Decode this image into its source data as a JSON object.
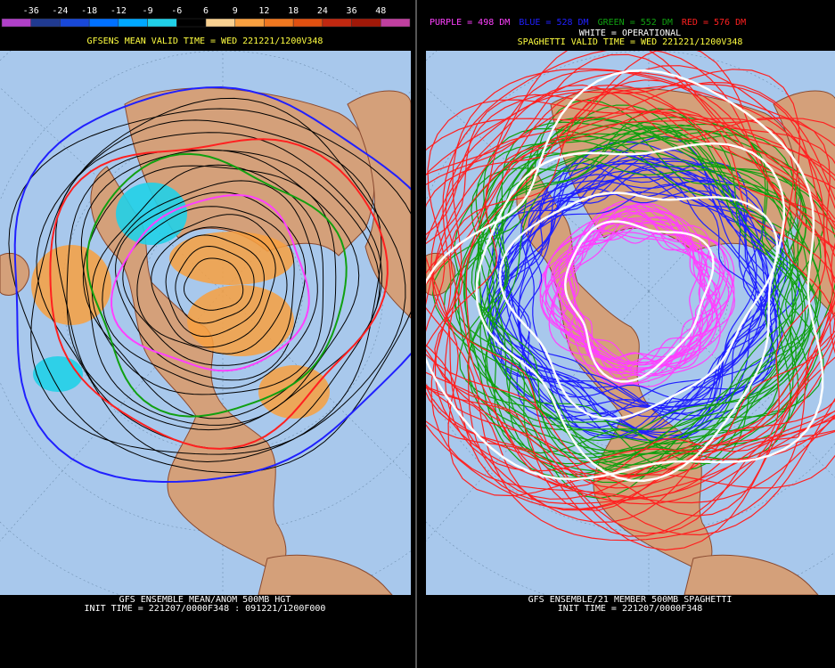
{
  "left_panel": {
    "colorbar": {
      "labels": [
        -36,
        -24,
        -18,
        -12,
        -9,
        -6,
        6,
        9,
        12,
        18,
        24,
        36,
        48
      ],
      "colors": [
        "#b040c8",
        "#203a90",
        "#1848d8",
        "#0070ff",
        "#00a8ff",
        "#20d0e8",
        "#000000",
        "#f8d090",
        "#f8a040",
        "#f07820",
        "#e05010",
        "#c02810",
        "#a01808",
        "#c040a0"
      ]
    },
    "valid_time": "GFSENS MEAN VALID TIME = WED 221221/1200V348",
    "footer": [
      "GFS ENSEMBLE MEAN/ANOM 500MB HGT",
      "INIT TIME = 221207/0000F348 : 091221/1200F000"
    ]
  },
  "right_panel": {
    "contours": [
      {
        "label": "PURPLE = 498 DM",
        "color": "#ff40ff"
      },
      {
        "label": "BLUE = 528 DM",
        "color": "#2020ff"
      },
      {
        "label": "GREEN = 552 DM",
        "color": "#10a010"
      },
      {
        "label": "RED = 576 DM",
        "color": "#ff2020"
      }
    ],
    "valid_time": "SPAGHETTI VALID TIME = WED 221221/1200V348",
    "operational": {
      "label": "WHITE = OPERATIONAL",
      "color": "#ffffff"
    },
    "footer": [
      "GFS ENSEMBLE/21 MEMBER 500MB SPAGHETTI",
      "INIT TIME = 221207/0000F348"
    ]
  }
}
